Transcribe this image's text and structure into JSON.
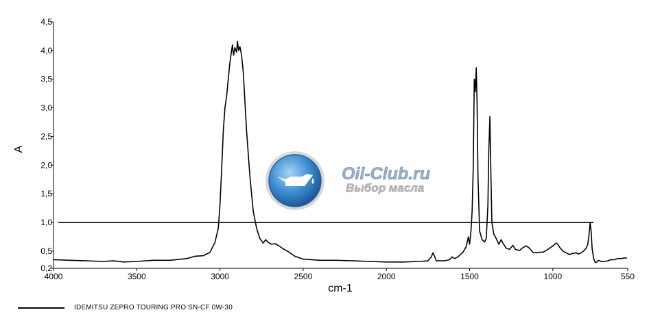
{
  "chart_data": {
    "type": "line",
    "xlabel": "cm-1",
    "ylabel": "A",
    "xlim": [
      4000,
      550
    ],
    "ylim": [
      0.2,
      4.5
    ],
    "x_reversed": true,
    "grid": false,
    "x_ticks": [
      {
        "value": 4000,
        "label": "4000"
      },
      {
        "value": 3500,
        "label": "3500"
      },
      {
        "value": 3000,
        "label": "3000"
      },
      {
        "value": 2500,
        "label": "2500"
      },
      {
        "value": 2000,
        "label": "2000"
      },
      {
        "value": 1500,
        "label": "1500"
      },
      {
        "value": 1000,
        "label": "1000"
      },
      {
        "value": 550,
        "label": "550"
      }
    ],
    "y_ticks": [
      {
        "value": 0.2,
        "label": "0,2"
      },
      {
        "value": 0.5,
        "label": "0,5"
      },
      {
        "value": 1.0,
        "label": "1,0"
      },
      {
        "value": 1.5,
        "label": "1,5"
      },
      {
        "value": 2.0,
        "label": "2,0"
      },
      {
        "value": 2.5,
        "label": "2,5"
      },
      {
        "value": 3.0,
        "label": "3,0"
      },
      {
        "value": 3.5,
        "label": "3,5"
      },
      {
        "value": 4.0,
        "label": "4,0"
      },
      {
        "value": 4.5,
        "label": "4,5"
      }
    ],
    "reference_line": {
      "y": 1.0,
      "x_from": 4000,
      "x_to": 755
    },
    "legend_position": "bottom-left",
    "series": [
      {
        "name": "IDEMITSU ZEPRO TOURING PRO SN-CF 0W-30",
        "color": "#000000",
        "points": [
          [
            4000,
            0.35
          ],
          [
            3900,
            0.34
          ],
          [
            3800,
            0.33
          ],
          [
            3700,
            0.32
          ],
          [
            3640,
            0.33
          ],
          [
            3580,
            0.31
          ],
          [
            3500,
            0.32
          ],
          [
            3400,
            0.34
          ],
          [
            3300,
            0.34
          ],
          [
            3200,
            0.37
          ],
          [
            3150,
            0.41
          ],
          [
            3100,
            0.42
          ],
          [
            3060,
            0.48
          ],
          [
            3030,
            0.65
          ],
          [
            3010,
            0.9
          ],
          [
            3000,
            1.3
          ],
          [
            2990,
            1.9
          ],
          [
            2980,
            2.6
          ],
          [
            2970,
            3.0
          ],
          [
            2960,
            3.2
          ],
          [
            2950,
            3.5
          ],
          [
            2940,
            3.8
          ],
          [
            2930,
            4.0
          ],
          [
            2925,
            4.1
          ],
          [
            2918,
            3.92
          ],
          [
            2910,
            4.05
          ],
          [
            2900,
            3.97
          ],
          [
            2895,
            4.16
          ],
          [
            2888,
            4.0
          ],
          [
            2880,
            4.07
          ],
          [
            2870,
            3.92
          ],
          [
            2860,
            3.62
          ],
          [
            2852,
            3.22
          ],
          [
            2848,
            3.0
          ],
          [
            2840,
            2.6
          ],
          [
            2820,
            1.8
          ],
          [
            2800,
            1.2
          ],
          [
            2780,
            0.9
          ],
          [
            2760,
            0.72
          ],
          [
            2740,
            0.64
          ],
          [
            2725,
            0.7
          ],
          [
            2710,
            0.65
          ],
          [
            2690,
            0.62
          ],
          [
            2670,
            0.63
          ],
          [
            2650,
            0.6
          ],
          [
            2620,
            0.54
          ],
          [
            2590,
            0.49
          ],
          [
            2550,
            0.41
          ],
          [
            2500,
            0.36
          ],
          [
            2400,
            0.34
          ],
          [
            2300,
            0.34
          ],
          [
            2200,
            0.33
          ],
          [
            2100,
            0.32
          ],
          [
            2000,
            0.31
          ],
          [
            1900,
            0.31
          ],
          [
            1800,
            0.32
          ],
          [
            1750,
            0.33
          ],
          [
            1730,
            0.4
          ],
          [
            1720,
            0.47
          ],
          [
            1712,
            0.42
          ],
          [
            1700,
            0.33
          ],
          [
            1650,
            0.33
          ],
          [
            1620,
            0.35
          ],
          [
            1605,
            0.4
          ],
          [
            1590,
            0.37
          ],
          [
            1570,
            0.4
          ],
          [
            1540,
            0.48
          ],
          [
            1520,
            0.58
          ],
          [
            1508,
            0.75
          ],
          [
            1500,
            0.62
          ],
          [
            1492,
            0.85
          ],
          [
            1485,
            1.2
          ],
          [
            1478,
            2.0
          ],
          [
            1472,
            3.5
          ],
          [
            1466,
            3.28
          ],
          [
            1460,
            3.7
          ],
          [
            1455,
            3.1
          ],
          [
            1450,
            1.8
          ],
          [
            1440,
            0.85
          ],
          [
            1425,
            0.7
          ],
          [
            1410,
            0.66
          ],
          [
            1400,
            0.72
          ],
          [
            1390,
            1.3
          ],
          [
            1385,
            2.2
          ],
          [
            1378,
            2.85
          ],
          [
            1372,
            1.8
          ],
          [
            1366,
            1.0
          ],
          [
            1355,
            0.8
          ],
          [
            1340,
            0.72
          ],
          [
            1325,
            0.62
          ],
          [
            1310,
            0.7
          ],
          [
            1300,
            0.64
          ],
          [
            1280,
            0.55
          ],
          [
            1260,
            0.53
          ],
          [
            1240,
            0.6
          ],
          [
            1225,
            0.53
          ],
          [
            1200,
            0.51
          ],
          [
            1180,
            0.56
          ],
          [
            1160,
            0.59
          ],
          [
            1140,
            0.55
          ],
          [
            1120,
            0.48
          ],
          [
            1100,
            0.47
          ],
          [
            1080,
            0.48
          ],
          [
            1060,
            0.48
          ],
          [
            1040,
            0.51
          ],
          [
            1020,
            0.55
          ],
          [
            1000,
            0.59
          ],
          [
            980,
            0.64
          ],
          [
            970,
            0.62
          ],
          [
            960,
            0.57
          ],
          [
            940,
            0.5
          ],
          [
            920,
            0.47
          ],
          [
            900,
            0.44
          ],
          [
            880,
            0.46
          ],
          [
            860,
            0.47
          ],
          [
            845,
            0.45
          ],
          [
            830,
            0.47
          ],
          [
            815,
            0.5
          ],
          [
            800,
            0.55
          ],
          [
            790,
            0.62
          ],
          [
            782,
            0.8
          ],
          [
            776,
            1.0
          ],
          [
            770,
            0.85
          ],
          [
            764,
            0.55
          ],
          [
            755,
            0.37
          ],
          [
            745,
            0.3
          ],
          [
            735,
            0.31
          ],
          [
            725,
            0.34
          ],
          [
            710,
            0.32
          ],
          [
            690,
            0.32
          ],
          [
            670,
            0.33
          ],
          [
            650,
            0.35
          ],
          [
            630,
            0.35
          ],
          [
            610,
            0.37
          ],
          [
            590,
            0.37
          ],
          [
            570,
            0.38
          ],
          [
            555,
            0.38
          ]
        ]
      }
    ]
  },
  "legend": {
    "label": "IDEMITSU ZEPRO TOURING PRO SN-CF 0W-30"
  },
  "watermark": {
    "title": "Oil-Club.ru",
    "subtitle": "Выбор масла",
    "icon": "oil-can-icon"
  }
}
